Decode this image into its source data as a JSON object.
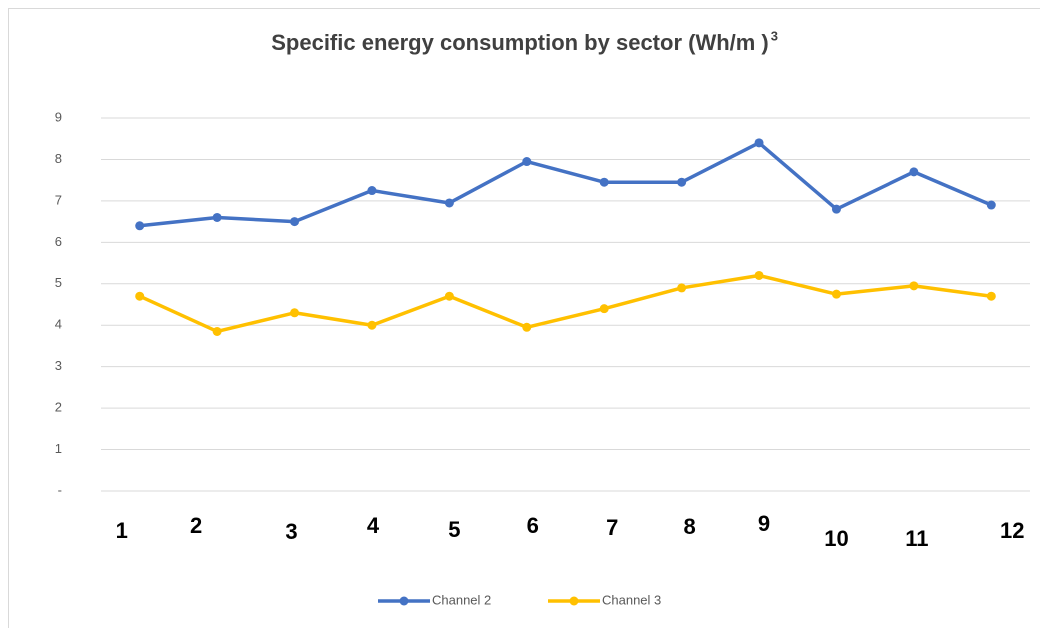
{
  "chart_data": {
    "type": "line",
    "title": "Specific energy consumption by sector (Wh/m )",
    "title_superscript": "3",
    "categories": [
      "1",
      "2",
      "3",
      "4",
      "5",
      "6",
      "7",
      "8",
      "9",
      "10",
      "11",
      "12"
    ],
    "series": [
      {
        "name": "Channel 2",
        "color": "#4472c4",
        "values": [
          6.4,
          6.6,
          6.5,
          7.25,
          6.95,
          7.95,
          7.45,
          7.45,
          8.4,
          6.8,
          7.7,
          6.9
        ]
      },
      {
        "name": "Channel 3",
        "color": "#ffc000",
        "values": [
          4.7,
          3.85,
          4.3,
          4.0,
          4.7,
          3.95,
          4.4,
          4.9,
          5.2,
          4.75,
          4.95,
          4.7
        ]
      }
    ],
    "ylim": [
      0,
      9
    ],
    "yticks": [
      {
        "value": 0,
        "label": "-"
      },
      1,
      2,
      3,
      4,
      5,
      6,
      7,
      8,
      9
    ],
    "grid": true,
    "legend": "bottom"
  }
}
